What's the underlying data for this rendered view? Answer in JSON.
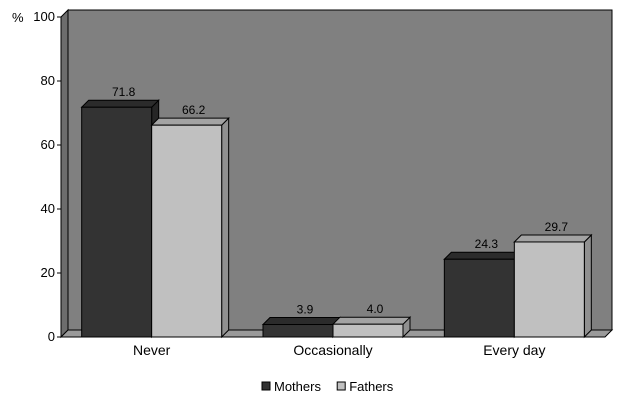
{
  "chart_data": {
    "type": "bar",
    "title": "",
    "ylabel": "%",
    "xlabel": "",
    "categories": [
      "Never",
      "Occasionally",
      "Every day"
    ],
    "series": [
      {
        "name": "Mothers",
        "values": [
          71.8,
          3.9,
          24.3
        ],
        "color": "#333333"
      },
      {
        "name": "Fathers",
        "values": [
          66.2,
          4.0,
          29.7
        ],
        "color": "#c0c0c0"
      }
    ],
    "data_labels": [
      [
        "71.8",
        "3.9",
        "24.3"
      ],
      [
        "66.2",
        "4.0",
        "29.7"
      ]
    ],
    "ylim": [
      0,
      100
    ],
    "yticks": [
      0,
      20,
      40,
      60,
      80,
      100
    ],
    "grid": false,
    "legend": "bottom",
    "plot_background": "#808080",
    "style": "3d-bar"
  }
}
